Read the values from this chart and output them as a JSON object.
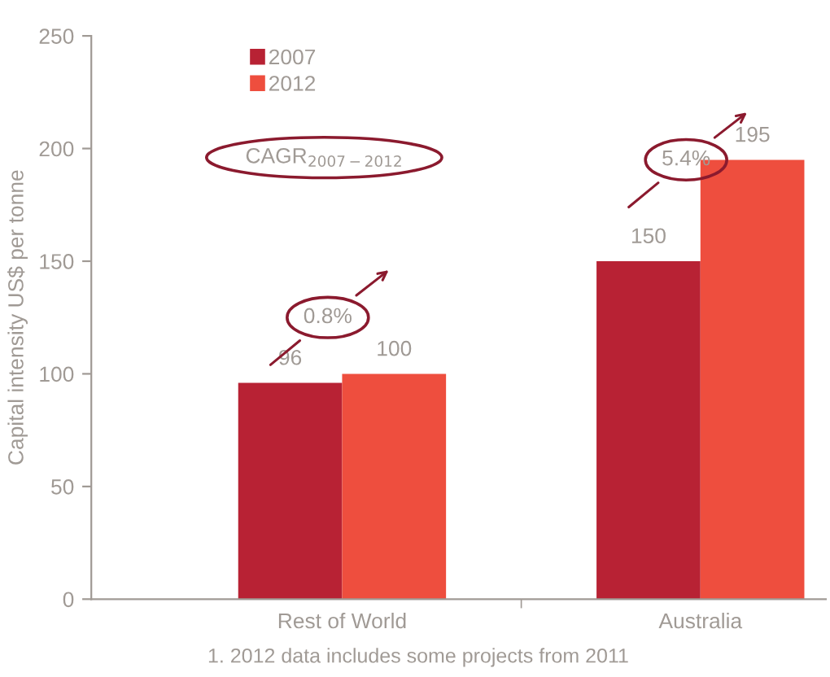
{
  "chart_data": {
    "type": "bar",
    "ylabel": "Capital intensity US$ per tonne",
    "categories": [
      "Rest of World",
      "Australia"
    ],
    "series": [
      {
        "name": "2007",
        "color": "#b82234",
        "values": [
          96,
          150
        ]
      },
      {
        "name": "2012",
        "color": "#ee4e3e",
        "values": [
          100,
          195
        ]
      }
    ],
    "ylim": [
      0,
      250
    ],
    "yticks": [
      0,
      50,
      100,
      150,
      200,
      250
    ],
    "grid": false,
    "legend": "top left",
    "data_labels": true,
    "annotations": [
      "CAGR$_{2007−2012}$",
      "0.8%",
      "5.4%",
      "1. 2012 data includes some projects from 2011"
    ]
  }
}
